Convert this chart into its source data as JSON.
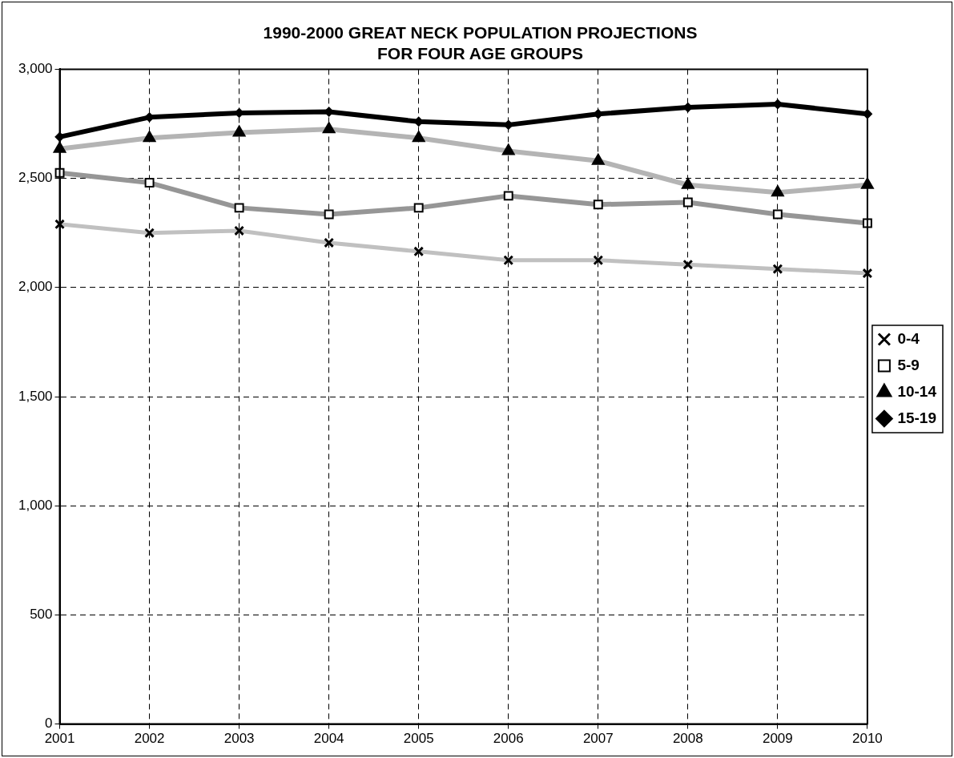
{
  "chart_data": {
    "type": "line",
    "title": "1990-2000 GREAT NECK POPULATION PROJECTIONS FOR FOUR AGE GROUPS",
    "categories": [
      "2001",
      "2002",
      "2003",
      "2004",
      "2005",
      "2006",
      "2007",
      "2008",
      "2009",
      "2010"
    ],
    "series": [
      {
        "name": "0-4",
        "color": "#c0c0c0",
        "marker": "cross",
        "values": [
          2290,
          2250,
          2260,
          2205,
          2165,
          2125,
          2125,
          2105,
          2085,
          2065
        ]
      },
      {
        "name": "5-9",
        "color": "#969696",
        "marker": "square",
        "values": [
          2525,
          2480,
          2365,
          2335,
          2365,
          2420,
          2380,
          2390,
          2335,
          2295
        ]
      },
      {
        "name": "10-14",
        "color": "#b4b4b4",
        "marker": "triangle",
        "values": [
          2635,
          2685,
          2710,
          2725,
          2685,
          2625,
          2580,
          2470,
          2435,
          2470
        ]
      },
      {
        "name": "15-19",
        "color": "#000000",
        "marker": "diamond",
        "values": [
          2690,
          2780,
          2800,
          2805,
          2760,
          2745,
          2795,
          2825,
          2840,
          2795
        ]
      }
    ],
    "ylim": [
      0,
      3000
    ],
    "yticks": [
      0,
      500,
      {
        "value": 1000,
        "label": "1,000"
      },
      {
        "value": 1500,
        "label": "1,500"
      },
      {
        "value": 2000,
        "label": "2,000"
      },
      {
        "value": 2500,
        "label": "2,500"
      },
      {
        "value": 3000,
        "label": "3,000"
      }
    ],
    "grid": true,
    "legend": "right",
    "line_style": "solid"
  }
}
